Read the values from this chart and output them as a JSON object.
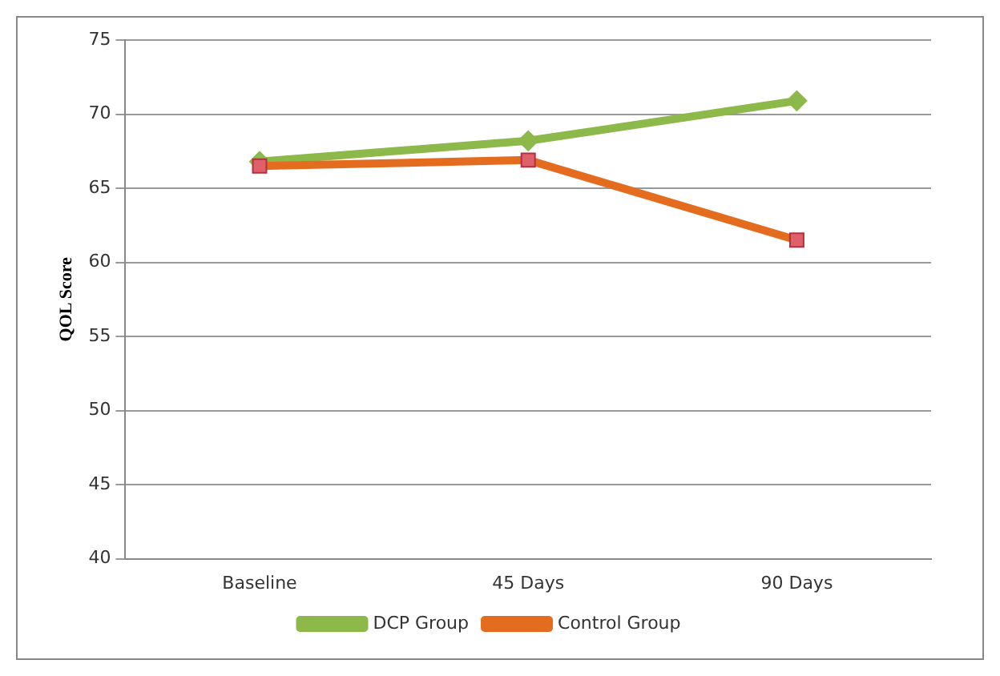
{
  "chart_data": {
    "type": "line",
    "ylabel": "QOL Score",
    "categories": [
      "Baseline",
      "45 Days",
      "90 Days"
    ],
    "series": [
      {
        "name": "DCP Group",
        "color": "#8db84a",
        "marker": "diamond",
        "values": [
          66.8,
          68.2,
          70.9
        ]
      },
      {
        "name": "Control Group",
        "color": "#e46c1f",
        "marker": "square",
        "values": [
          66.5,
          66.9,
          61.5
        ]
      }
    ],
    "ylim": [
      40,
      75
    ],
    "yticks": [
      40,
      45,
      50,
      55,
      60,
      65,
      70,
      75
    ],
    "grid": "y",
    "legend": "bottom"
  }
}
